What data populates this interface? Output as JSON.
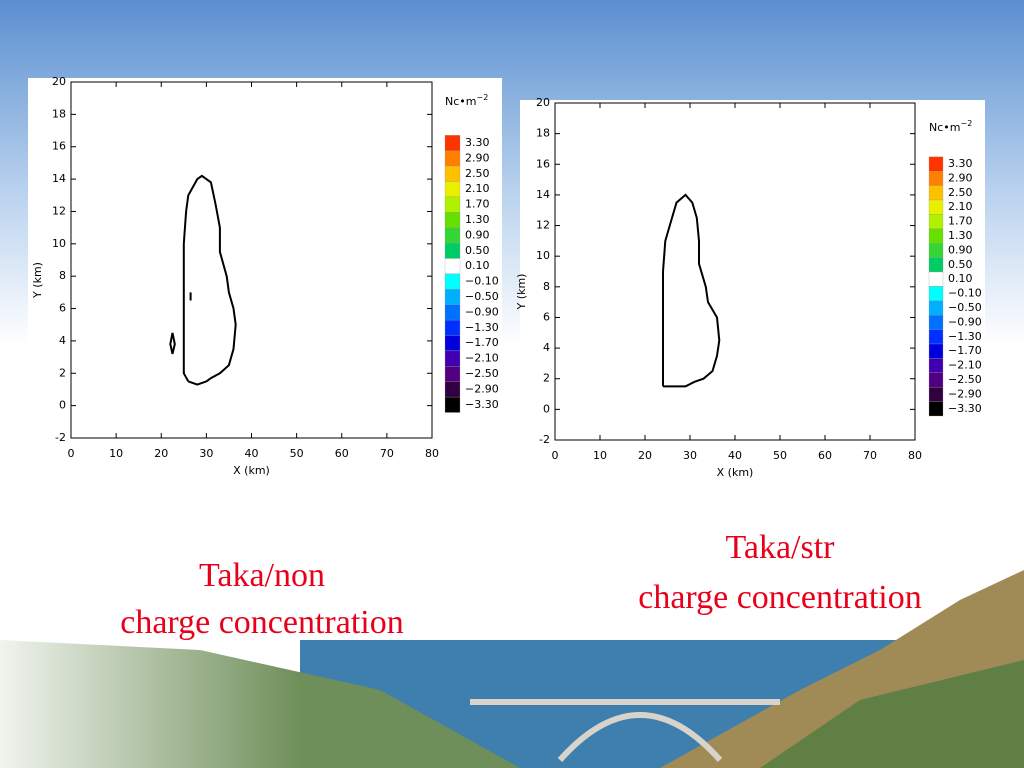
{
  "chart_data": [
    {
      "type": "contour",
      "x_label": "X (km)",
      "y_label": "Y (km)",
      "xlim": [
        0,
        80
      ],
      "xticks": [
        0,
        10,
        20,
        30,
        40,
        50,
        60,
        70,
        80
      ],
      "ylim": [
        -2,
        20
      ],
      "yticks": [
        -2,
        0,
        2,
        4,
        6,
        8,
        10,
        12,
        14,
        16,
        18,
        20
      ],
      "contour": {
        "color": "#000000",
        "x": [
          26,
          25,
          25,
          25,
          25.5,
          26,
          28,
          29,
          31,
          32,
          33,
          33,
          34.5,
          35,
          36,
          36.5,
          36,
          35,
          33,
          31,
          30,
          28,
          26,
          null,
          22.5,
          23,
          22.5,
          22,
          22.5,
          null,
          26.5,
          26.5
        ],
        "y": [
          1.5,
          2,
          6,
          10,
          12,
          13,
          14,
          14.2,
          13.8,
          12.5,
          11,
          9.5,
          8,
          7,
          6,
          5,
          3.5,
          2.5,
          2,
          1.7,
          1.5,
          1.3,
          1.5,
          null,
          4.5,
          3.8,
          3.2,
          3.8,
          4.5,
          null,
          6.5,
          7
        ]
      },
      "colorbar": {
        "title": "Nc•m",
        "title_sup": "−2",
        "levels": [
          {
            "value": 3.3,
            "label": "3.30"
          },
          {
            "value": 2.9,
            "label": "2.90"
          },
          {
            "value": 2.5,
            "label": "2.50"
          },
          {
            "value": 2.1,
            "label": "2.10"
          },
          {
            "value": 1.7,
            "label": "1.70"
          },
          {
            "value": 1.3,
            "label": "1.30"
          },
          {
            "value": 0.9,
            "label": "0.90"
          },
          {
            "value": 0.5,
            "label": "0.50"
          },
          {
            "value": 0.1,
            "label": "0.10"
          },
          {
            "value": -0.1,
            "label": "−0.10"
          },
          {
            "value": -0.5,
            "label": "−0.50"
          },
          {
            "value": -0.9,
            "label": "−0.90"
          },
          {
            "value": -1.3,
            "label": "−1.30"
          },
          {
            "value": -1.7,
            "label": "−1.70"
          },
          {
            "value": -2.1,
            "label": "−2.10"
          },
          {
            "value": -2.5,
            "label": "−2.50"
          },
          {
            "value": -2.9,
            "label": "−2.90"
          },
          {
            "value": -3.3,
            "label": "−3.30"
          }
        ],
        "colors": [
          "#ff3300",
          "#ff8000",
          "#ffc000",
          "#e8f000",
          "#b0f000",
          "#66e000",
          "#33d633",
          "#00cc66",
          "#ffffff",
          "#00ffff",
          "#00b0ff",
          "#0070ff",
          "#0030ff",
          "#0000dd",
          "#4000b0",
          "#500080",
          "#300040",
          "#000000"
        ]
      },
      "caption": [
        "Taka/non",
        "charge concentration"
      ]
    },
    {
      "type": "contour",
      "x_label": "X (km)",
      "y_label": "Y (km)",
      "xlim": [
        0,
        80
      ],
      "xticks": [
        0,
        10,
        20,
        30,
        40,
        50,
        60,
        70,
        80
      ],
      "ylim": [
        -2,
        20
      ],
      "yticks": [
        -2,
        0,
        2,
        4,
        6,
        8,
        10,
        12,
        14,
        16,
        18,
        20
      ],
      "contour": {
        "color": "#000000",
        "x": [
          24,
          24,
          24,
          24.5,
          26,
          27,
          29,
          30.5,
          31.5,
          32,
          32,
          33.5,
          34,
          35,
          36,
          36.5,
          36,
          35,
          33,
          31,
          29,
          27,
          25,
          24
        ],
        "y": [
          1.5,
          6,
          9,
          11,
          12.5,
          13.5,
          14,
          13.5,
          12.5,
          11,
          9.5,
          8,
          7,
          6.5,
          6,
          4.5,
          3.5,
          2.5,
          2,
          1.8,
          1.5,
          1.5,
          1.5,
          1.5
        ]
      },
      "colorbar": {
        "title": "Nc•m",
        "title_sup": "−2",
        "levels": [
          {
            "value": 3.3,
            "label": "3.30"
          },
          {
            "value": 2.9,
            "label": "2.90"
          },
          {
            "value": 2.5,
            "label": "2.50"
          },
          {
            "value": 2.1,
            "label": "2.10"
          },
          {
            "value": 1.7,
            "label": "1.70"
          },
          {
            "value": 1.3,
            "label": "1.30"
          },
          {
            "value": 0.9,
            "label": "0.90"
          },
          {
            "value": 0.5,
            "label": "0.50"
          },
          {
            "value": 0.1,
            "label": "0.10"
          },
          {
            "value": -0.1,
            "label": "−0.10"
          },
          {
            "value": -0.5,
            "label": "−0.50"
          },
          {
            "value": -0.9,
            "label": "−0.90"
          },
          {
            "value": -1.3,
            "label": "−1.30"
          },
          {
            "value": -1.7,
            "label": "−1.70"
          },
          {
            "value": -2.1,
            "label": "−2.10"
          },
          {
            "value": -2.5,
            "label": "−2.50"
          },
          {
            "value": -2.9,
            "label": "−2.90"
          },
          {
            "value": -3.3,
            "label": "−3.30"
          }
        ],
        "colors": [
          "#ff3300",
          "#ff8000",
          "#ffc000",
          "#e8f000",
          "#b0f000",
          "#66e000",
          "#33d633",
          "#00cc66",
          "#ffffff",
          "#00ffff",
          "#00b0ff",
          "#0070ff",
          "#0030ff",
          "#0000dd",
          "#4000b0",
          "#500080",
          "#300040",
          "#000000"
        ]
      },
      "caption": [
        "Taka/str",
        "charge concentration"
      ]
    }
  ]
}
